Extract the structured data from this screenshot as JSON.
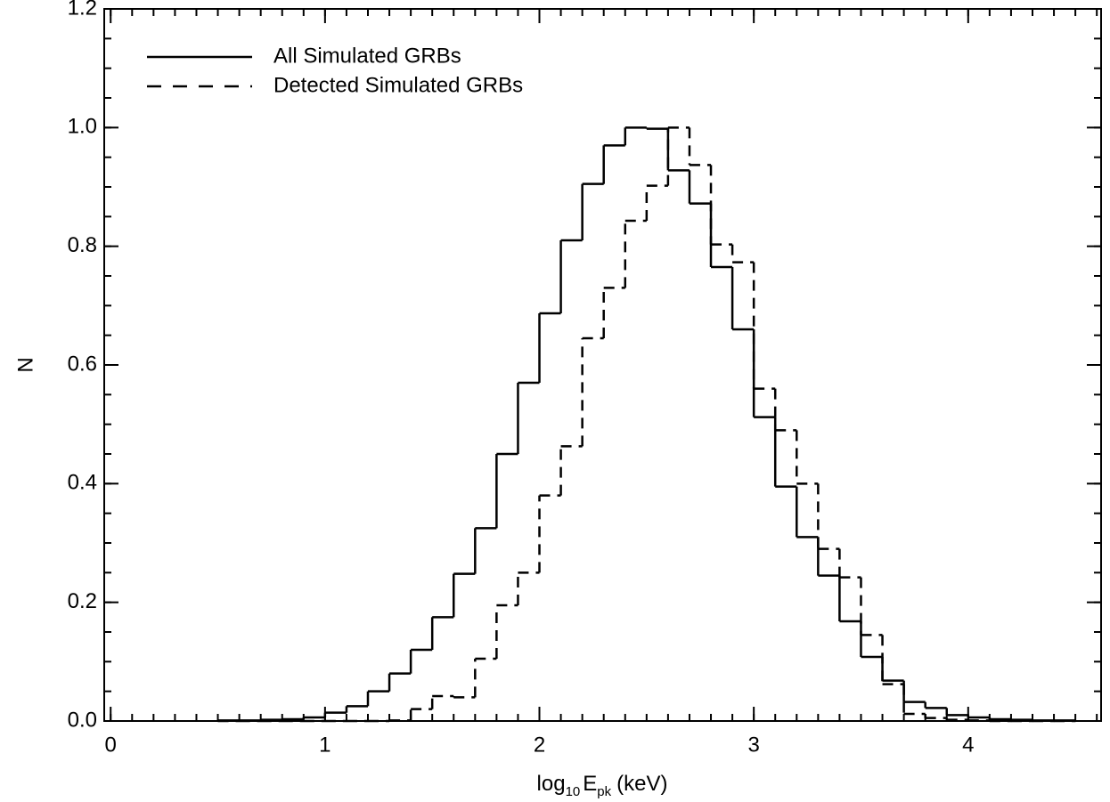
{
  "chart_data": {
    "type": "histogram",
    "x_label": {
      "base": "log",
      "base_sub": "10",
      "var": "E",
      "var_sub": "pk",
      "unit": "(keV)"
    },
    "y_label": "N",
    "bins": [
      0.5,
      0.6,
      0.7,
      0.8,
      0.9,
      1.0,
      1.1,
      1.2,
      1.3,
      1.4,
      1.5,
      1.6,
      1.7,
      1.8,
      1.9,
      2.0,
      2.1,
      2.2,
      2.3,
      2.4,
      2.5,
      2.6,
      2.7,
      2.8,
      2.9,
      3.0,
      3.1,
      3.2,
      3.3,
      3.4,
      3.5,
      3.6,
      3.7,
      3.8,
      3.9,
      4.0,
      4.1,
      4.2,
      4.3,
      4.4,
      4.5
    ],
    "series": [
      {
        "name": "All Simulated GRBs",
        "color": "#000000",
        "style": "solid",
        "values": [
          0.001,
          0.001,
          0.002,
          0.003,
          0.006,
          0.014,
          0.025,
          0.05,
          0.08,
          0.12,
          0.175,
          0.248,
          0.325,
          0.45,
          0.57,
          0.687,
          0.81,
          0.905,
          0.97,
          1.0,
          0.998,
          0.928,
          0.872,
          0.765,
          0.66,
          0.512,
          0.395,
          0.31,
          0.245,
          0.168,
          0.108,
          0.068,
          0.032,
          0.022,
          0.01,
          0.006,
          0.003,
          0.002,
          0.001,
          0.001
        ]
      },
      {
        "name": "Detected Simulated GRBs",
        "color": "#000000",
        "style": "dashed",
        "values": [
          0,
          0,
          0,
          0,
          0,
          0,
          0,
          0,
          0.001,
          0.02,
          0.042,
          0.04,
          0.105,
          0.195,
          0.25,
          0.38,
          0.463,
          0.645,
          0.73,
          0.843,
          0.902,
          1.0,
          0.937,
          0.803,
          0.773,
          0.56,
          0.49,
          0.4,
          0.29,
          0.242,
          0.145,
          0.062,
          0.012,
          0.005,
          0.002,
          0.001,
          0,
          0,
          0,
          0
        ]
      }
    ],
    "xlim": [
      -0.03,
      4.62
    ],
    "xticks": [
      0,
      1,
      2,
      3,
      4
    ],
    "ylim": [
      0,
      1.2
    ],
    "yticks": [
      {
        "value": 0,
        "label": "0.0"
      },
      0.2,
      0.4,
      0.6,
      0.8,
      {
        "value": 1,
        "label": "1.0"
      },
      1.2
    ],
    "legend": "upper left"
  }
}
